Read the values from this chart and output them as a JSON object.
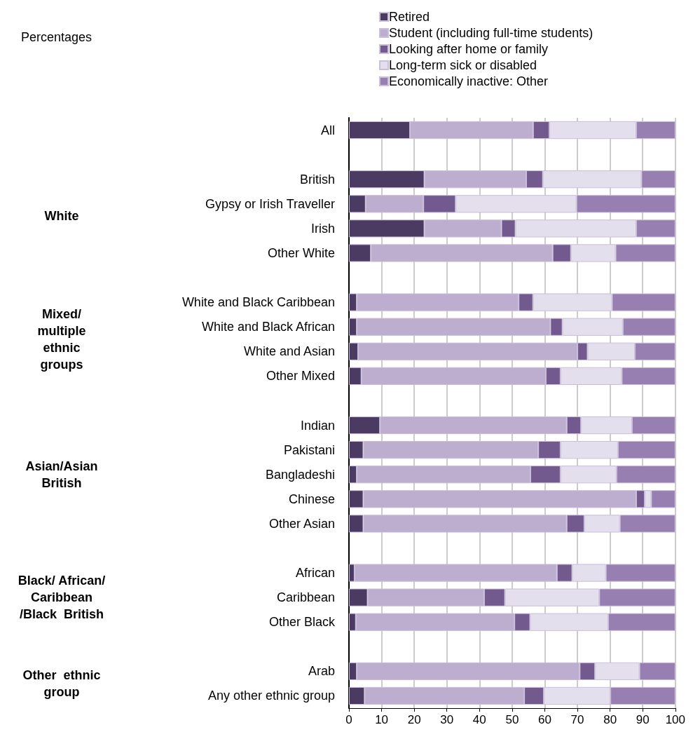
{
  "chart_data": {
    "type": "bar",
    "orientation": "horizontal",
    "stacked": true,
    "categories": [
      "All",
      null,
      "British",
      "Gypsy or Irish Traveller",
      "Irish",
      "Other White",
      null,
      "White and Black Caribbean",
      "White and Black African",
      "White and Asian",
      "Other Mixed",
      null,
      "Indian",
      "Pakistani",
      "Bangladeshi",
      "Chinese",
      "Other Asian",
      null,
      "African",
      "Caribbean",
      "Other Black",
      null,
      "Arab",
      "Any other ethnic group"
    ],
    "series": [
      {
        "name": "Retired",
        "color": "#4b3a62",
        "values": [
          18.7,
          null,
          23.1,
          5.1,
          23.1,
          6.7,
          null,
          2.4,
          2.4,
          2.8,
          3.8,
          null,
          9.5,
          4.4,
          2.4,
          4.4,
          4.4,
          null,
          1.7,
          5.7,
          2.1,
          null,
          2.4,
          4.8
        ]
      },
      {
        "name": "Student (including full-time students)",
        "color": "#bdaecf",
        "values": [
          37.7,
          null,
          31.2,
          17.7,
          23.6,
          55.7,
          null,
          49.6,
          59.3,
          67.2,
          56.5,
          null,
          57.2,
          53.6,
          53.2,
          83.6,
          62.3,
          null,
          62.0,
          35.7,
          48.6,
          null,
          68.3,
          48.9
        ]
      },
      {
        "name": "Looking after home or family",
        "color": "#725a8f",
        "values": [
          5.0,
          null,
          5.1,
          9.9,
          4.3,
          5.6,
          null,
          4.4,
          3.7,
          3.1,
          4.5,
          null,
          4.4,
          6.8,
          9.2,
          2.6,
          5.4,
          null,
          4.7,
          6.4,
          4.8,
          null,
          4.7,
          6.0
        ]
      },
      {
        "name": "Long-term sick or disabled",
        "color": "#e4dfec",
        "values": [
          26.6,
          null,
          30.2,
          37.0,
          37.0,
          13.7,
          null,
          24.2,
          18.5,
          14.5,
          18.8,
          null,
          15.6,
          17.6,
          17.2,
          2.0,
          10.9,
          null,
          10.3,
          28.9,
          23.9,
          null,
          13.6,
          20.4
        ]
      },
      {
        "name": "Economically inactive: Other",
        "color": "#977fb2",
        "values": [
          12.0,
          null,
          10.4,
          30.3,
          12.0,
          18.3,
          null,
          19.4,
          16.1,
          12.4,
          16.4,
          null,
          13.3,
          17.6,
          18.0,
          7.4,
          17.0,
          null,
          21.3,
          23.3,
          20.6,
          null,
          11.0,
          19.9
        ]
      }
    ],
    "xlim": [
      0,
      100
    ],
    "xticks": [
      0,
      10,
      20,
      30,
      40,
      50,
      60,
      70,
      80,
      90,
      100
    ],
    "grid": "x",
    "legend": "top",
    "annotations": [
      "Percentages",
      "White",
      "Mixed/\nmultiple\nethnic\ngroups",
      "Asian/Asian\nBritish",
      "Black/ African/\nCaribbean\n/Black  British",
      "Other  ethnic\ngroup"
    ]
  }
}
